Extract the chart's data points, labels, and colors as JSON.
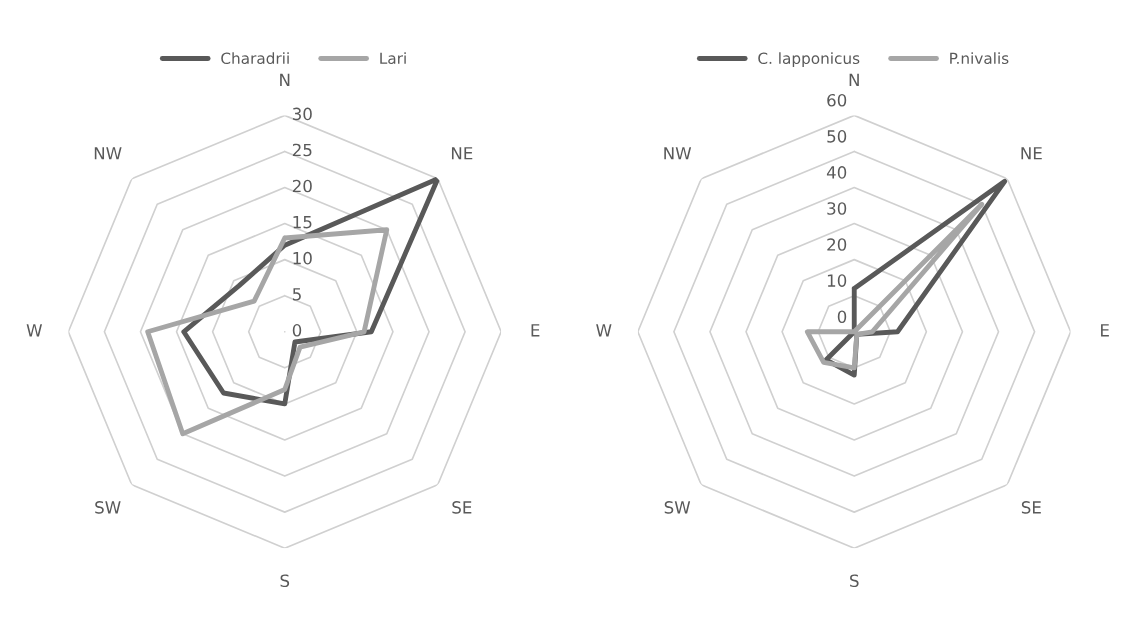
{
  "chart_data": [
    {
      "type": "radar",
      "categories": [
        "N",
        "NE",
        "E",
        "SE",
        "S",
        "SW",
        "W",
        "NW"
      ],
      "ylim": [
        0,
        30
      ],
      "yticks": [
        0,
        5,
        10,
        15,
        20,
        25,
        30
      ],
      "grid": true,
      "legend": "top",
      "series": [
        {
          "name": "Charadrii",
          "color": "#595959",
          "values": [
            12,
            30,
            12,
            2,
            10,
            12,
            14,
            9
          ]
        },
        {
          "name": "Lari",
          "color": "#a6a6a6",
          "values": [
            13,
            20,
            11,
            3,
            8,
            20,
            19,
            6
          ]
        }
      ]
    },
    {
      "type": "radar",
      "categories": [
        "N",
        "NE",
        "E",
        "SE",
        "S",
        "SW",
        "W",
        "NW"
      ],
      "ylim": [
        0,
        60
      ],
      "yticks": [
        0,
        10,
        20,
        30,
        40,
        50,
        60
      ],
      "grid": true,
      "legend": "top",
      "series": [
        {
          "name": "C. lapponicus",
          "color": "#595959",
          "values": [
            12,
            59,
            12,
            1,
            12,
            11,
            0,
            0
          ]
        },
        {
          "name": "P.nivalis",
          "color": "#a6a6a6",
          "values": [
            0,
            50,
            5,
            1,
            10,
            12,
            13,
            0
          ]
        }
      ]
    }
  ]
}
